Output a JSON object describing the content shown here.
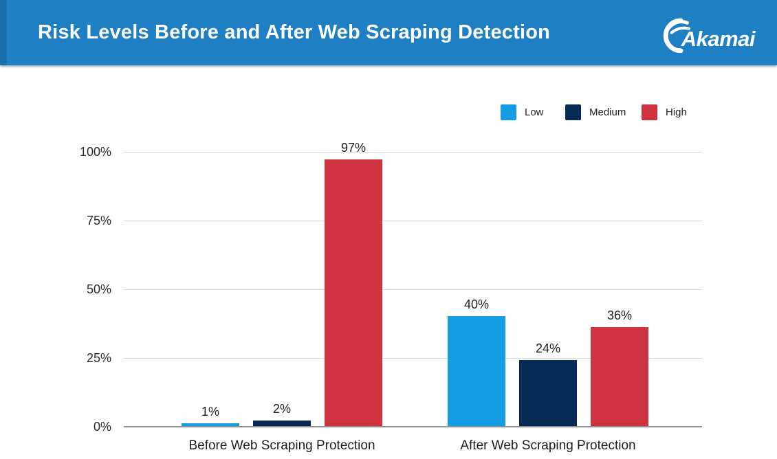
{
  "header": {
    "title": "Risk Levels Before and After Web Scraping Detection",
    "logo_text": "Akamai"
  },
  "colors": {
    "header_bg": "#1F7FC3",
    "header_accent": "#1A70AC",
    "low": "#149DE2",
    "medium": "#062A54",
    "high": "#CE333F",
    "gridline": "#d8d8d8",
    "axis_line": "#8f8f8f"
  },
  "chart_data": {
    "type": "bar",
    "title": "Risk Levels Before and After Web Scraping Detection",
    "categories": [
      "Before Web Scraping Protection",
      "After Web Scraping Protection"
    ],
    "series": [
      {
        "name": "Low",
        "color": "#149DE2",
        "values": [
          1,
          40
        ],
        "labels": [
          "1%",
          "40%"
        ]
      },
      {
        "name": "Medium",
        "color": "#062A54",
        "values": [
          2,
          24
        ],
        "labels": [
          "2%",
          "24%"
        ]
      },
      {
        "name": "High",
        "color": "#CE333F",
        "values": [
          97,
          36
        ],
        "labels": [
          "97%",
          "36%"
        ]
      }
    ],
    "ticks": [
      {
        "value": 0,
        "label": "0%"
      },
      {
        "value": 25,
        "label": "25%"
      },
      {
        "value": 50,
        "label": "50%"
      },
      {
        "value": 75,
        "label": "75%"
      },
      {
        "value": 100,
        "label": "100%"
      }
    ],
    "ylim": [
      0,
      100
    ],
    "value_suffix": "%",
    "grid": true,
    "legend_position": "top-right"
  }
}
